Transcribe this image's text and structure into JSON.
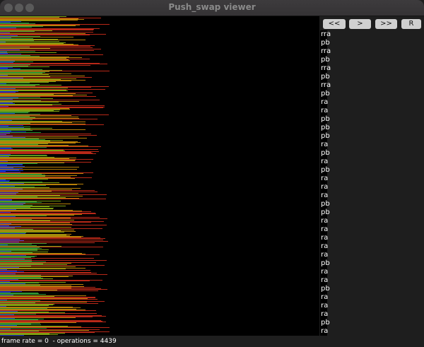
{
  "window": {
    "title": "Push_swap viewer"
  },
  "controls": {
    "buttons": [
      "<<",
      ">",
      ">>",
      "R"
    ]
  },
  "operations": [
    "rra",
    "pb",
    "rra",
    "pb",
    "rra",
    "pb",
    "rra",
    "pb",
    "ra",
    "ra",
    "pb",
    "pb",
    "pb",
    "ra",
    "pb",
    "ra",
    "pb",
    "ra",
    "ra",
    "ra",
    "pb",
    "pb",
    "ra",
    "ra",
    "ra",
    "ra",
    "ra",
    "pb",
    "ra",
    "ra",
    "pb",
    "ra",
    "ra",
    "ra",
    "pb",
    "ra"
  ],
  "status": {
    "text": "frame rate = 0  - operations = 4439"
  },
  "colors": {
    "low": "#1e3cf0",
    "mid_low": "#3cb43c",
    "mid": "#a0c814",
    "mid_high": "#e6a00a",
    "high": "#e6321e"
  }
}
